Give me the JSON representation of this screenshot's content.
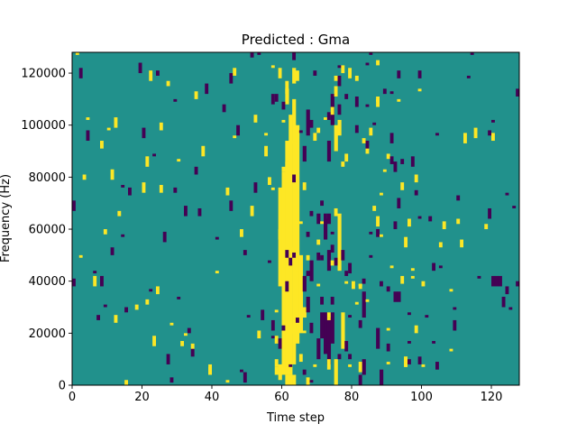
{
  "chart_data": {
    "type": "heatmap",
    "title": "Predicted : Gma",
    "xlabel": "Time step",
    "ylabel": "Frequency (Hz)",
    "xlim": [
      0,
      128
    ],
    "ylim": [
      0,
      128000
    ],
    "xticks": [
      0,
      20,
      40,
      60,
      80,
      100,
      120
    ],
    "yticks": [
      0,
      20000,
      40000,
      60000,
      80000,
      100000,
      120000
    ],
    "grid": false,
    "colors": {
      "background": "#21918c",
      "high": "#fde725",
      "low": "#440154"
    },
    "rows": 128,
    "row_height": 1000,
    "bands": [
      {
        "x": [
          60,
          61
        ],
        "y": [
          4000,
          82000
        ],
        "value": "high"
      },
      {
        "x": [
          61,
          62
        ],
        "y": [
          4000,
          94000
        ],
        "value": "high"
      },
      {
        "x": [
          62,
          63
        ],
        "y": [
          4000,
          104000
        ],
        "value": "high"
      },
      {
        "x": [
          63,
          64
        ],
        "y": [
          8000,
          110000
        ],
        "value": "high"
      },
      {
        "x": [
          64,
          65
        ],
        "y": [
          16000,
          100000
        ],
        "value": "high"
      },
      {
        "x": [
          65,
          66
        ],
        "y": [
          20000,
          50000
        ],
        "value": "high"
      },
      {
        "x": [
          61,
          62
        ],
        "y": [
          108000,
          114000
        ],
        "value": "high"
      },
      {
        "x": [
          63,
          64
        ],
        "y": [
          116000,
          122000
        ],
        "value": "high"
      },
      {
        "x": [
          59,
          60
        ],
        "y": [
          38000,
          76000
        ],
        "value": "high"
      },
      {
        "x": [
          66,
          67
        ],
        "y": [
          26000,
          30000
        ],
        "value": "high"
      },
      {
        "x": [
          72,
          73
        ],
        "y": [
          12000,
          28000
        ],
        "value": "low"
      },
      {
        "x": [
          73,
          74
        ],
        "y": [
          8000,
          26000
        ],
        "value": "low"
      },
      {
        "x": [
          74,
          75
        ],
        "y": [
          16000,
          28000
        ],
        "value": "low"
      },
      {
        "x": [
          70,
          71
        ],
        "y": [
          10000,
          18000
        ],
        "value": "low"
      },
      {
        "x": [
          71,
          72
        ],
        "y": [
          18000,
          28000
        ],
        "value": "low"
      },
      {
        "x": [
          67,
          68
        ],
        "y": [
          28000,
          34000
        ],
        "value": "low"
      },
      {
        "x": [
          73,
          74
        ],
        "y": [
          44000,
          52000
        ],
        "value": "low"
      },
      {
        "x": [
          72,
          73
        ],
        "y": [
          56000,
          64000
        ],
        "value": "low"
      },
      {
        "x": [
          70,
          71
        ],
        "y": [
          62000,
          66000
        ],
        "value": "low"
      },
      {
        "x": [
          73,
          74
        ],
        "y": [
          62000,
          66000
        ],
        "value": "low"
      },
      {
        "x": [
          76,
          77
        ],
        "y": [
          44000,
          66000
        ],
        "value": "high"
      },
      {
        "x": [
          77,
          78
        ],
        "y": [
          14000,
          28000
        ],
        "value": "high"
      },
      {
        "x": [
          74,
          75
        ],
        "y": [
          100000,
          112000
        ],
        "value": "low"
      },
      {
        "x": [
          73,
          74
        ],
        "y": [
          86000,
          94000
        ],
        "value": "low"
      },
      {
        "x": [
          67,
          68
        ],
        "y": [
          96000,
          106000
        ],
        "value": "low"
      },
      {
        "x": [
          66,
          67
        ],
        "y": [
          86000,
          92000
        ],
        "value": "low"
      },
      {
        "x": [
          83,
          84
        ],
        "y": [
          26000,
          36000
        ],
        "value": "low"
      },
      {
        "x": [
          83,
          84
        ],
        "y": [
          4000,
          10000
        ],
        "value": "low"
      },
      {
        "x": [
          87,
          88
        ],
        "y": [
          14000,
          22000
        ],
        "value": "low"
      },
      {
        "x": [
          88,
          89
        ],
        "y": [
          0,
          6000
        ],
        "value": "low"
      },
      {
        "x": [
          92,
          93
        ],
        "y": [
          32000,
          36000
        ],
        "value": "low"
      },
      {
        "x": [
          93,
          94
        ],
        "y": [
          32000,
          36000
        ],
        "value": "low"
      },
      {
        "x": [
          120,
          121
        ],
        "y": [
          38000,
          42000
        ],
        "value": "low"
      },
      {
        "x": [
          121,
          122
        ],
        "y": [
          38000,
          42000
        ],
        "value": "low"
      },
      {
        "x": [
          122,
          123
        ],
        "y": [
          38000,
          42000
        ],
        "value": "low"
      },
      {
        "x": [
          76,
          77
        ],
        "y": [
          96000,
          102000
        ],
        "value": "high"
      },
      {
        "x": [
          75,
          76
        ],
        "y": [
          90000,
          100000
        ],
        "value": "high"
      },
      {
        "x": [
          68,
          69
        ],
        "y": [
          40000,
          48000
        ],
        "value": "low"
      },
      {
        "x": [
          66,
          67
        ],
        "y": [
          36000,
          42000
        ],
        "value": "low"
      },
      {
        "x": [
          75,
          76
        ],
        "y": [
          0,
          10000
        ],
        "value": "high"
      },
      {
        "x": [
          61,
          62
        ],
        "y": [
          0,
          4000
        ],
        "value": "high"
      },
      {
        "x": [
          62,
          63
        ],
        "y": [
          0,
          4000
        ],
        "value": "high"
      },
      {
        "x": [
          63,
          64
        ],
        "y": [
          0,
          4000
        ],
        "value": "high"
      },
      {
        "x": [
          59,
          60
        ],
        "y": [
          2000,
          8000
        ],
        "value": "high"
      },
      {
        "x": [
          60,
          61
        ],
        "y": [
          82000,
          84000
        ],
        "value": "high"
      }
    ]
  }
}
